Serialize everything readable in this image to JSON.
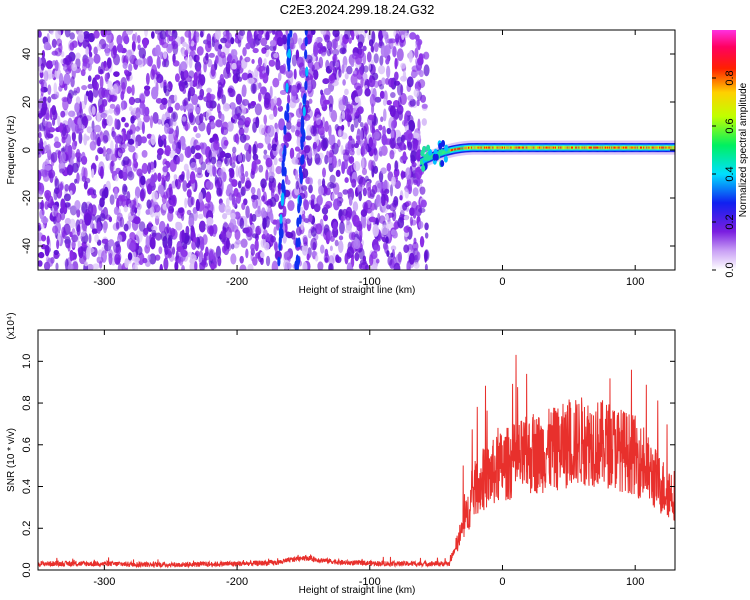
{
  "figure": {
    "title": "C2E3.2024.299.18.24.G32"
  },
  "chart_data": [
    {
      "type": "heatmap",
      "title": "",
      "xlabel": "Height of straight line (km)",
      "ylabel": "Frequency (Hz)",
      "xlim": [
        -350,
        130
      ],
      "ylim": [
        -50,
        50
      ],
      "x_ticks": [
        -300,
        -200,
        -100,
        0,
        100
      ],
      "y_ticks": [
        -40,
        -20,
        0,
        20,
        40
      ],
      "colorbar": {
        "label": "Normalized spectral amplitude",
        "range": [
          0,
          1
        ],
        "ticks": [
          "0.0",
          "0.2",
          "0.4",
          "0.6",
          "0.8"
        ],
        "tick_values": [
          0.0,
          0.2,
          0.4,
          0.6,
          0.8
        ],
        "colormap": "rainbow (white-violet-blue-cyan-green-yellow-red-magenta)"
      },
      "signal_track": {
        "description_values": "coherent signal near 0 Hz from about -62 km to 130 km",
        "start_km": -62,
        "end_km": 130,
        "frequency_hz_at_start": -5,
        "frequency_hz_plateau": 1,
        "noise_region_km": [
          -350,
          -57
        ],
        "streak_km": [
          -168,
          -155
        ]
      }
    },
    {
      "type": "line",
      "title": "",
      "xlabel": "Height of straight line (km)",
      "ylabel": "SNR (10 * v/v)",
      "yscale_label": "(x10⁴)",
      "xlim": [
        -350,
        130
      ],
      "ylim": [
        0,
        1.15
      ],
      "x_ticks": [
        -300,
        -200,
        -100,
        0,
        100
      ],
      "y_ticks": [
        "0.0",
        "0.2",
        "0.4",
        "0.6",
        "0.8",
        "1.0"
      ],
      "y_tick_values": [
        0.0,
        0.2,
        0.4,
        0.6,
        0.8,
        1.0
      ],
      "series": [
        {
          "color": "#e8302c",
          "x": [
            -350,
            -300,
            -250,
            -200,
            -170,
            -150,
            -140,
            -120,
            -80,
            -40,
            -30,
            -20,
            -10,
            0,
            20,
            40,
            60,
            80,
            100,
            120,
            130
          ],
          "y": [
            0.03,
            0.03,
            0.025,
            0.03,
            0.035,
            0.06,
            0.05,
            0.035,
            0.03,
            0.03,
            0.2,
            0.4,
            0.45,
            0.5,
            0.55,
            0.58,
            0.62,
            0.6,
            0.55,
            0.4,
            0.36
          ]
        }
      ]
    }
  ]
}
